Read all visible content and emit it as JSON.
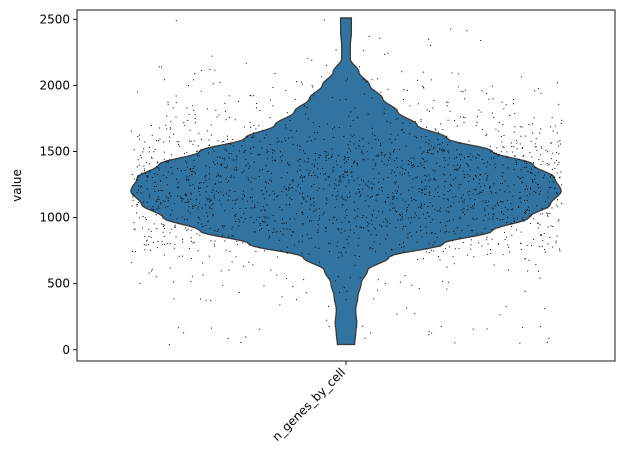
{
  "chart_data": {
    "type": "violin",
    "xlabel": "",
    "ylabel": "value",
    "ylim": [
      -85,
      2570
    ],
    "y_ticks": [
      0,
      500,
      1000,
      1500,
      2000,
      2500
    ],
    "categories": [
      "n_genes_by_cell"
    ],
    "grid": false,
    "legend": "none",
    "violin_color": "#3274a1",
    "violin_edge_color": "#3a3a3a",
    "point_color": "#000000",
    "series": [
      {
        "category": "n_genes_by_cell",
        "distribution": {
          "min": 40,
          "max": 2510,
          "mode": 1200,
          "profile": [
            {
              "value": 40,
              "density": 0.04
            },
            {
              "value": 120,
              "density": 0.045
            },
            {
              "value": 200,
              "density": 0.05
            },
            {
              "value": 300,
              "density": 0.045
            },
            {
              "value": 400,
              "density": 0.055
            },
            {
              "value": 500,
              "density": 0.07
            },
            {
              "value": 600,
              "density": 0.1
            },
            {
              "value": 700,
              "density": 0.2
            },
            {
              "value": 800,
              "density": 0.45
            },
            {
              "value": 900,
              "density": 0.68
            },
            {
              "value": 1000,
              "density": 0.85
            },
            {
              "value": 1100,
              "density": 0.95
            },
            {
              "value": 1200,
              "density": 1.0
            },
            {
              "value": 1300,
              "density": 0.97
            },
            {
              "value": 1400,
              "density": 0.87
            },
            {
              "value": 1500,
              "density": 0.68
            },
            {
              "value": 1600,
              "density": 0.47
            },
            {
              "value": 1700,
              "density": 0.33
            },
            {
              "value": 1800,
              "density": 0.24
            },
            {
              "value": 1900,
              "density": 0.17
            },
            {
              "value": 2000,
              "density": 0.11
            },
            {
              "value": 2100,
              "density": 0.06
            },
            {
              "value": 2200,
              "density": 0.02
            },
            {
              "value": 2300,
              "density": 0.02
            },
            {
              "value": 2400,
              "density": 0.025
            },
            {
              "value": 2510,
              "density": 0.025
            }
          ]
        },
        "n_points_shown": 2000
      }
    ]
  }
}
